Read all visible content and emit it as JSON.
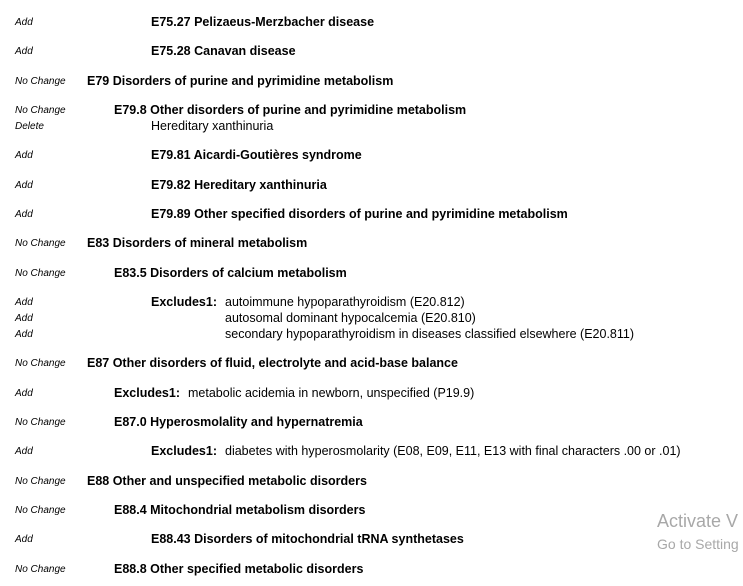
{
  "entries": [
    {
      "action": "Add",
      "code": "E75.27 Pelizaeus-Merzbacher disease"
    },
    {
      "action": "Add",
      "code": "E75.28 Canavan disease"
    },
    {
      "action": "No Change",
      "code": "E79 Disorders of purine and pyrimidine metabolism"
    },
    {
      "action": "No Change",
      "code": "E79.8 Other disorders of purine and pyrimidine metabolism"
    },
    {
      "action": "Delete",
      "code": "Hereditary xanthinuria"
    },
    {
      "action": "Add",
      "code": "E79.81 Aicardi-Goutières syndrome"
    },
    {
      "action": "Add",
      "code": "E79.82 Hereditary xanthinuria"
    },
    {
      "action": "Add",
      "code": "E79.89 Other specified disorders of purine and pyrimidine metabolism"
    },
    {
      "action": "No Change",
      "code": "E83 Disorders of mineral metabolism"
    },
    {
      "action": "No Change",
      "code": "E83.5 Disorders of calcium metabolism"
    },
    {
      "action": "Add",
      "label": "Excludes1:",
      "text": "autoimmune hypoparathyroidism (E20.812)"
    },
    {
      "action": "Add",
      "text": "autosomal dominant hypocalcemia (E20.810)"
    },
    {
      "action": "Add",
      "text": "secondary hypoparathyroidism in diseases classified elsewhere (E20.811)"
    },
    {
      "action": "No Change",
      "code": "E87 Other disorders of fluid, electrolyte and acid-base balance"
    },
    {
      "action": "Add",
      "label": "Excludes1:",
      "text": "metabolic acidemia in newborn, unspecified (P19.9)"
    },
    {
      "action": "No Change",
      "code": "E87.0 Hyperosmolality and hypernatremia"
    },
    {
      "action": "Add",
      "label": "Excludes1:",
      "text": "diabetes with hyperosmolarity (E08, E09, E11, E13 with final characters .00 or .01)"
    },
    {
      "action": "No Change",
      "code": "E88 Other and unspecified metabolic disorders"
    },
    {
      "action": "No Change",
      "code": "E88.4 Mitochondrial metabolism disorders"
    },
    {
      "action": "Add",
      "code": "E88.43 Disorders of mitochondrial tRNA synthetases"
    },
    {
      "action": "No Change",
      "code": "E88.8 Other specified metabolic disorders"
    }
  ],
  "watermark": {
    "line1": "Activate V",
    "line2": "Go to Setting"
  }
}
